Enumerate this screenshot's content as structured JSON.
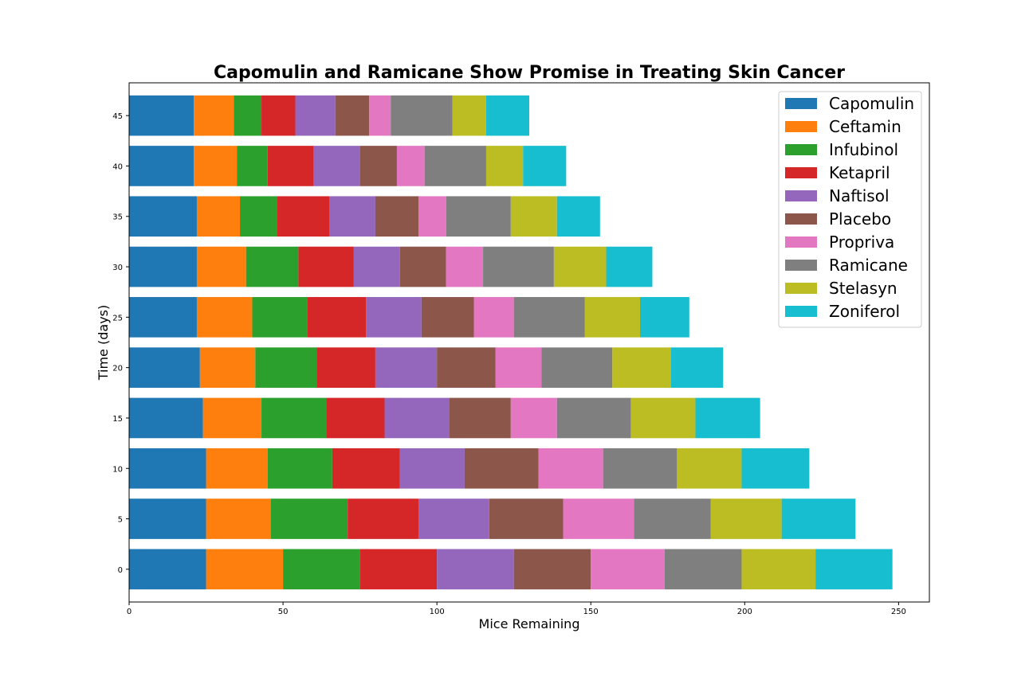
{
  "chart_data": {
    "type": "bar",
    "orientation": "horizontal",
    "stacked": true,
    "title": "Capomulin and Ramicane Show Promise in Treating Skin Cancer",
    "xlabel": "Mice Remaining",
    "ylabel": "Time (days)",
    "xlim": [
      0,
      260
    ],
    "xticks": [
      0,
      50,
      100,
      150,
      200,
      250
    ],
    "categories": [
      "0",
      "5",
      "10",
      "15",
      "20",
      "25",
      "30",
      "35",
      "40",
      "45"
    ],
    "legend_position": "top-right",
    "series": [
      {
        "name": "Capomulin",
        "color": "#1f77b4",
        "values": [
          25,
          25,
          25,
          24,
          23,
          22,
          22,
          22,
          21,
          21
        ]
      },
      {
        "name": "Ceftamin",
        "color": "#ff7f0e",
        "values": [
          25,
          21,
          20,
          19,
          18,
          18,
          16,
          14,
          14,
          13
        ]
      },
      {
        "name": "Infubinol",
        "color": "#2ca02c",
        "values": [
          25,
          25,
          21,
          21,
          20,
          18,
          17,
          12,
          10,
          9
        ]
      },
      {
        "name": "Ketapril",
        "color": "#d62728",
        "values": [
          25,
          23,
          22,
          19,
          19,
          19,
          18,
          17,
          15,
          11
        ]
      },
      {
        "name": "Naftisol",
        "color": "#9467bd",
        "values": [
          25,
          23,
          21,
          21,
          20,
          18,
          15,
          15,
          15,
          13
        ]
      },
      {
        "name": "Placebo",
        "color": "#8c564b",
        "values": [
          25,
          24,
          24,
          20,
          19,
          17,
          15,
          14,
          12,
          11
        ]
      },
      {
        "name": "Propriva",
        "color": "#e377c2",
        "values": [
          24,
          23,
          21,
          15,
          15,
          13,
          12,
          9,
          9,
          7
        ]
      },
      {
        "name": "Ramicane",
        "color": "#7f7f7f",
        "values": [
          25,
          25,
          24,
          24,
          23,
          23,
          23,
          21,
          20,
          20
        ]
      },
      {
        "name": "Stelasyn",
        "color": "#bcbd22",
        "values": [
          24,
          23,
          21,
          21,
          19,
          18,
          17,
          15,
          12,
          11
        ]
      },
      {
        "name": "Zoniferol",
        "color": "#17becf",
        "values": [
          25,
          24,
          22,
          21,
          17,
          16,
          15,
          14,
          14,
          14
        ]
      }
    ]
  }
}
